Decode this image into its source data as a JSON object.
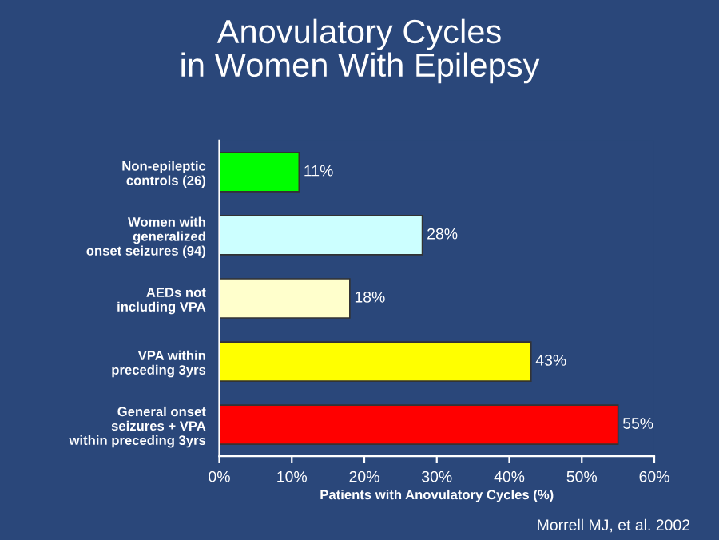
{
  "chart_data": {
    "type": "bar",
    "orientation": "horizontal",
    "title": "Anovulatory Cycles\nin Women With Epilepsy",
    "xlabel": "Patients with Anovulatory Cycles (%)",
    "categories": [
      "Non-epileptic\ncontrols (26)",
      "Women with\ngeneralized\nonset seizures (94)",
      "AEDs not\nincluding VPA",
      "VPA within\npreceding 3yrs",
      "General onset\nseizures + VPA\nwithin preceding 3yrs"
    ],
    "values": [
      11,
      28,
      18,
      43,
      55
    ],
    "colors": [
      "#00ff00",
      "#ccffff",
      "#ffffcc",
      "#ffff00",
      "#ff0000"
    ],
    "value_labels": [
      "11%",
      "28%",
      "18%",
      "43%",
      "55%"
    ],
    "xlim": [
      0,
      60
    ],
    "xticks": [
      {
        "value": 0,
        "label": "0%"
      },
      {
        "value": 10,
        "label": "10%"
      },
      {
        "value": 20,
        "label": "20%"
      },
      {
        "value": 30,
        "label": "30%"
      },
      {
        "value": 40,
        "label": "40%"
      },
      {
        "value": 50,
        "label": "50%"
      },
      {
        "value": 60,
        "label": "60%"
      }
    ],
    "annotations": [
      "Morrell MJ, et al. 2002"
    ],
    "grid": false,
    "legend": false
  }
}
